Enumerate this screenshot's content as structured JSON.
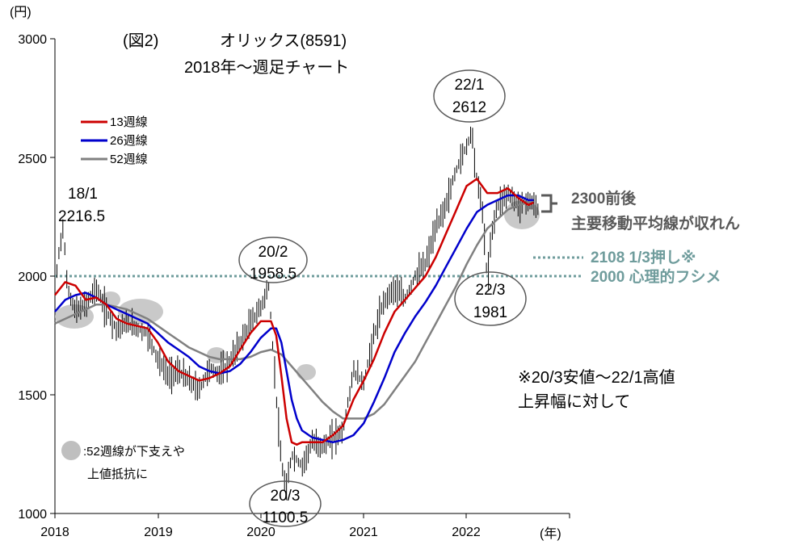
{
  "title": {
    "fig": "(図2)",
    "name": "オリックス(8591)",
    "sub": "2018年〜週足チャート"
  },
  "axes": {
    "yunit": "(円)",
    "xunit": "(年)",
    "yticks": [
      "3000",
      "2500",
      "2000",
      "1500",
      "1000"
    ],
    "xticks": [
      "2018",
      "2019",
      "2020",
      "2021",
      "2022"
    ]
  },
  "legend": {
    "ma13": "13週線",
    "ma26": "26週線",
    "ma52": "52週線"
  },
  "annotations": {
    "a1801_date": "18/1",
    "a1801_val": "2216.5",
    "a2002_date": "20/2",
    "a2002_val": "1958.5",
    "a2003_date": "20/3",
    "a2003_val": "1100.5",
    "a2201_date": "22/1",
    "a2201_val": "2612",
    "a2203_date": "22/3",
    "a2203_val": "1981",
    "ma_note1": "2300前後",
    "ma_note2": "主要移動平均線が収れん",
    "line2108": "2108 1/3押し※",
    "line2000": "2000 心理的フシメ",
    "footnote1": "※20/3安値〜22/1高値",
    "footnote2": "上昇幅に対して",
    "support1": ":52週線が下支えや",
    "support2": "上値抵抗に"
  },
  "colors": {
    "ma13": "#cc0000",
    "ma26": "#0000cc",
    "ma52": "#808080",
    "dotted": "#6f9c9c",
    "highlight": "#bfbfbf"
  },
  "chart_data": {
    "type": "line",
    "ylim": [
      1000,
      3000
    ],
    "xlim": [
      2018.0,
      2023.0
    ],
    "horizontal_lines": [
      2000
    ],
    "price_weekly_close": {
      "x": [
        2018.0,
        2018.04,
        2018.08,
        2018.12,
        2018.2,
        2018.3,
        2018.4,
        2018.5,
        2018.6,
        2018.7,
        2018.8,
        2018.9,
        2019.0,
        2019.1,
        2019.2,
        2019.3,
        2019.4,
        2019.5,
        2019.6,
        2019.7,
        2019.8,
        2019.9,
        2020.0,
        2020.08,
        2020.1,
        2020.15,
        2020.2,
        2020.25,
        2020.3,
        2020.4,
        2020.5,
        2020.6,
        2020.7,
        2020.8,
        2020.9,
        2021.0,
        2021.1,
        2021.2,
        2021.3,
        2021.4,
        2021.5,
        2021.6,
        2021.7,
        2021.8,
        2021.9,
        2022.0,
        2022.05,
        2022.1,
        2022.15,
        2022.2,
        2022.25,
        2022.3,
        2022.4,
        2022.5,
        2022.6,
        2022.7
      ],
      "y": [
        1950,
        2100,
        2216.5,
        1950,
        1850,
        1880,
        1950,
        1850,
        1780,
        1800,
        1780,
        1760,
        1650,
        1580,
        1600,
        1560,
        1520,
        1610,
        1590,
        1640,
        1720,
        1800,
        1870,
        1958.5,
        1800,
        1500,
        1200,
        1100.5,
        1250,
        1200,
        1300,
        1280,
        1320,
        1350,
        1600,
        1550,
        1750,
        1900,
        1950,
        1900,
        2000,
        2050,
        2200,
        2300,
        2450,
        2550,
        2612,
        2400,
        2300,
        1981,
        2200,
        2300,
        2350,
        2300,
        2320,
        2280
      ]
    },
    "series": [
      {
        "name": "13週線",
        "x": [
          2018.0,
          2018.1,
          2018.2,
          2018.3,
          2018.4,
          2018.5,
          2018.6,
          2018.7,
          2018.8,
          2018.9,
          2019.0,
          2019.1,
          2019.2,
          2019.3,
          2019.4,
          2019.5,
          2019.6,
          2019.7,
          2019.8,
          2019.9,
          2020.0,
          2020.1,
          2020.15,
          2020.2,
          2020.25,
          2020.3,
          2020.35,
          2020.4,
          2020.5,
          2020.6,
          2020.7,
          2020.8,
          2020.9,
          2021.0,
          2021.1,
          2021.2,
          2021.3,
          2021.4,
          2021.5,
          2021.6,
          2021.7,
          2021.8,
          2021.9,
          2022.0,
          2022.1,
          2022.2,
          2022.3,
          2022.4,
          2022.5,
          2022.6,
          2022.65
        ],
        "y": [
          1920,
          1975,
          1960,
          1900,
          1910,
          1880,
          1820,
          1800,
          1790,
          1780,
          1720,
          1640,
          1600,
          1580,
          1560,
          1570,
          1590,
          1620,
          1690,
          1760,
          1810,
          1810,
          1750,
          1580,
          1400,
          1300,
          1290,
          1300,
          1300,
          1300,
          1330,
          1370,
          1480,
          1560,
          1650,
          1760,
          1850,
          1900,
          1950,
          2000,
          2080,
          2180,
          2280,
          2380,
          2410,
          2350,
          2350,
          2370,
          2330,
          2300,
          2310
        ]
      },
      {
        "name": "26週線",
        "x": [
          2018.0,
          2018.1,
          2018.2,
          2018.3,
          2018.4,
          2018.5,
          2018.6,
          2018.7,
          2018.8,
          2018.9,
          2019.0,
          2019.1,
          2019.2,
          2019.3,
          2019.4,
          2019.5,
          2019.6,
          2019.7,
          2019.8,
          2019.9,
          2020.0,
          2020.1,
          2020.15,
          2020.2,
          2020.25,
          2020.3,
          2020.35,
          2020.4,
          2020.5,
          2020.6,
          2020.7,
          2020.8,
          2020.9,
          2021.0,
          2021.1,
          2021.2,
          2021.3,
          2021.4,
          2021.5,
          2021.6,
          2021.7,
          2021.8,
          2021.9,
          2022.0,
          2022.1,
          2022.2,
          2022.3,
          2022.4,
          2022.5,
          2022.6,
          2022.65
        ],
        "y": [
          1850,
          1900,
          1920,
          1930,
          1910,
          1880,
          1860,
          1840,
          1820,
          1800,
          1760,
          1720,
          1690,
          1660,
          1620,
          1600,
          1590,
          1600,
          1630,
          1680,
          1740,
          1780,
          1780,
          1720,
          1600,
          1480,
          1400,
          1350,
          1320,
          1310,
          1300,
          1310,
          1330,
          1380,
          1470,
          1570,
          1680,
          1760,
          1830,
          1890,
          1960,
          2040,
          2120,
          2200,
          2270,
          2300,
          2320,
          2340,
          2340,
          2320,
          2320
        ]
      },
      {
        "name": "52週線",
        "x": [
          2018.0,
          2018.1,
          2018.2,
          2018.3,
          2018.4,
          2018.5,
          2018.6,
          2018.7,
          2018.8,
          2018.9,
          2019.0,
          2019.1,
          2019.2,
          2019.3,
          2019.4,
          2019.5,
          2019.6,
          2019.7,
          2019.8,
          2019.9,
          2020.0,
          2020.1,
          2020.2,
          2020.3,
          2020.4,
          2020.5,
          2020.6,
          2020.7,
          2020.8,
          2020.9,
          2021.0,
          2021.1,
          2021.2,
          2021.3,
          2021.4,
          2021.5,
          2021.6,
          2021.7,
          2021.8,
          2021.9,
          2022.0,
          2022.1,
          2022.2,
          2022.3,
          2022.4,
          2022.5,
          2022.6,
          2022.65
        ],
        "y": [
          1800,
          1820,
          1840,
          1860,
          1880,
          1880,
          1870,
          1860,
          1840,
          1820,
          1790,
          1760,
          1730,
          1700,
          1680,
          1660,
          1650,
          1650,
          1650,
          1660,
          1680,
          1690,
          1670,
          1620,
          1570,
          1520,
          1470,
          1430,
          1400,
          1400,
          1400,
          1420,
          1460,
          1520,
          1580,
          1640,
          1720,
          1800,
          1880,
          1960,
          2050,
          2130,
          2200,
          2240,
          2280,
          2300,
          2310,
          2310
        ]
      }
    ]
  }
}
